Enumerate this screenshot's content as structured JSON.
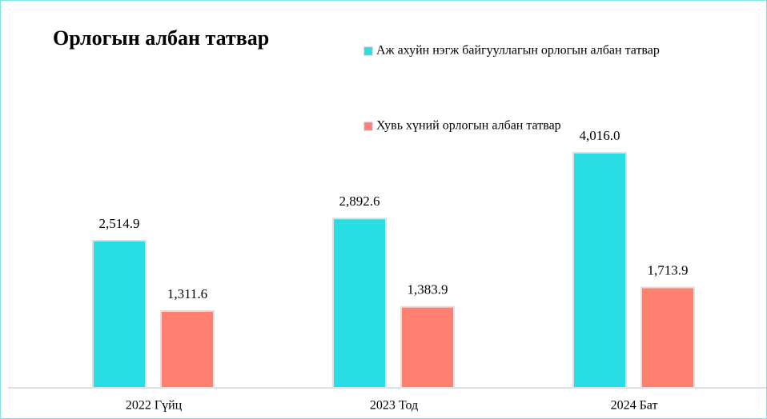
{
  "chart_data": {
    "type": "bar",
    "title": "Орлогын албан татвар",
    "categories": [
      "2022 Гүйц",
      "2023 Тод",
      "2024 Бат"
    ],
    "series": [
      {
        "name": "Аж ахуйн нэгж байгууллагын орлогын албан татвар",
        "color": "#29dde4",
        "values": [
          2514.9,
          2892.6,
          4016.0
        ],
        "value_labels": [
          "2,514.9",
          "2,892.6",
          "4,016.0"
        ]
      },
      {
        "name": "Хувь хүний орлогын албан татвар",
        "color": "#ff8070",
        "values": [
          1311.6,
          1383.9,
          1713.9
        ],
        "value_labels": [
          "1,311.6",
          "1,383.9",
          "1,713.9"
        ]
      }
    ]
  }
}
